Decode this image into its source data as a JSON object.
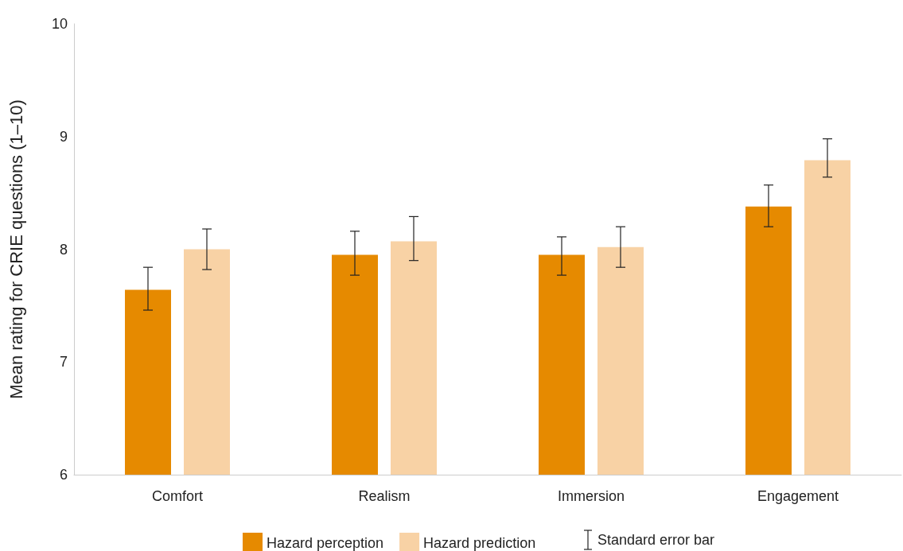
{
  "chart_data": {
    "type": "bar",
    "ylabel": "Mean rating for CRIE questions (1–10)",
    "categories": [
      "Comfort",
      "Realism",
      "Immersion",
      "Engagement"
    ],
    "series": [
      {
        "name": "Hazard perception",
        "color": "#e68a00",
        "values": [
          7.64,
          7.95,
          7.95,
          8.38
        ],
        "errors": [
          [
            7.46,
            7.84
          ],
          [
            7.77,
            8.16
          ],
          [
            7.77,
            8.11
          ],
          [
            8.2,
            8.57
          ]
        ]
      },
      {
        "name": "Hazard prediction",
        "color": "#f8d2a5",
        "values": [
          8.0,
          8.07,
          8.02,
          8.79
        ],
        "errors": [
          [
            7.82,
            8.18
          ],
          [
            7.9,
            8.29
          ],
          [
            7.84,
            8.2
          ],
          [
            8.64,
            8.98
          ]
        ]
      }
    ],
    "ylim": [
      6,
      10
    ],
    "yticks": [
      6,
      7,
      8,
      9,
      10
    ],
    "grid": false,
    "legend": "bottom",
    "annotations": [
      "Standard error bar"
    ]
  }
}
